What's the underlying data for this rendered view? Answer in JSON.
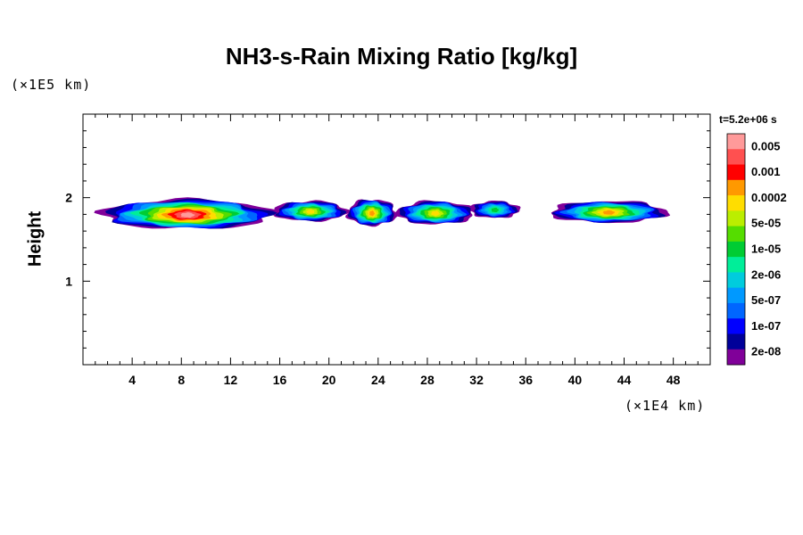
{
  "chart_data": {
    "type": "heatmap",
    "title": "NH3-s-Rain Mixing Ratio [kg/kg]",
    "xlabel": "",
    "ylabel": "Height",
    "x_unit": "(×1E4 km)",
    "y_unit": "(×1E5 km)",
    "time_label": "t=5.2e+06 s",
    "xlim": [
      0,
      51
    ],
    "ylim": [
      0,
      3
    ],
    "x_ticks": [
      4,
      8,
      12,
      16,
      20,
      24,
      28,
      32,
      36,
      40,
      44,
      48
    ],
    "y_ticks": [
      1,
      2
    ],
    "colorbar": {
      "levels": [
        "0.005",
        "0.001",
        "0.0002",
        "5e-05",
        "1e-05",
        "2e-06",
        "5e-07",
        "1e-07",
        "2e-08"
      ],
      "colors": [
        "#ff9a9a",
        "#ff5050",
        "#ff0000",
        "#ff9900",
        "#ffdd00",
        "#bbee00",
        "#55dd00",
        "#00cc33",
        "#00ee99",
        "#00ccdd",
        "#0099ff",
        "#0066ff",
        "#0000ff",
        "#000099",
        "#800099"
      ]
    },
    "regions": [
      {
        "x0": 1.5,
        "x1": 15.5,
        "ytop": 2.0,
        "ybot": 1.62,
        "peak": 0.003
      },
      {
        "x0": 15.5,
        "x1": 21.5,
        "ytop": 1.98,
        "ybot": 1.72,
        "peak": 3e-05
      },
      {
        "x0": 21.5,
        "x1": 25.5,
        "ytop": 2.0,
        "ybot": 1.66,
        "peak": 5e-05
      },
      {
        "x0": 25.5,
        "x1": 31.8,
        "ytop": 1.98,
        "ybot": 1.68,
        "peak": 3e-05
      },
      {
        "x0": 31.5,
        "x1": 35.5,
        "ytop": 1.98,
        "ybot": 1.76,
        "peak": 1e-06
      },
      {
        "x0": 38.0,
        "x1": 47.5,
        "ytop": 1.98,
        "ybot": 1.7,
        "peak": 5e-05
      }
    ]
  }
}
